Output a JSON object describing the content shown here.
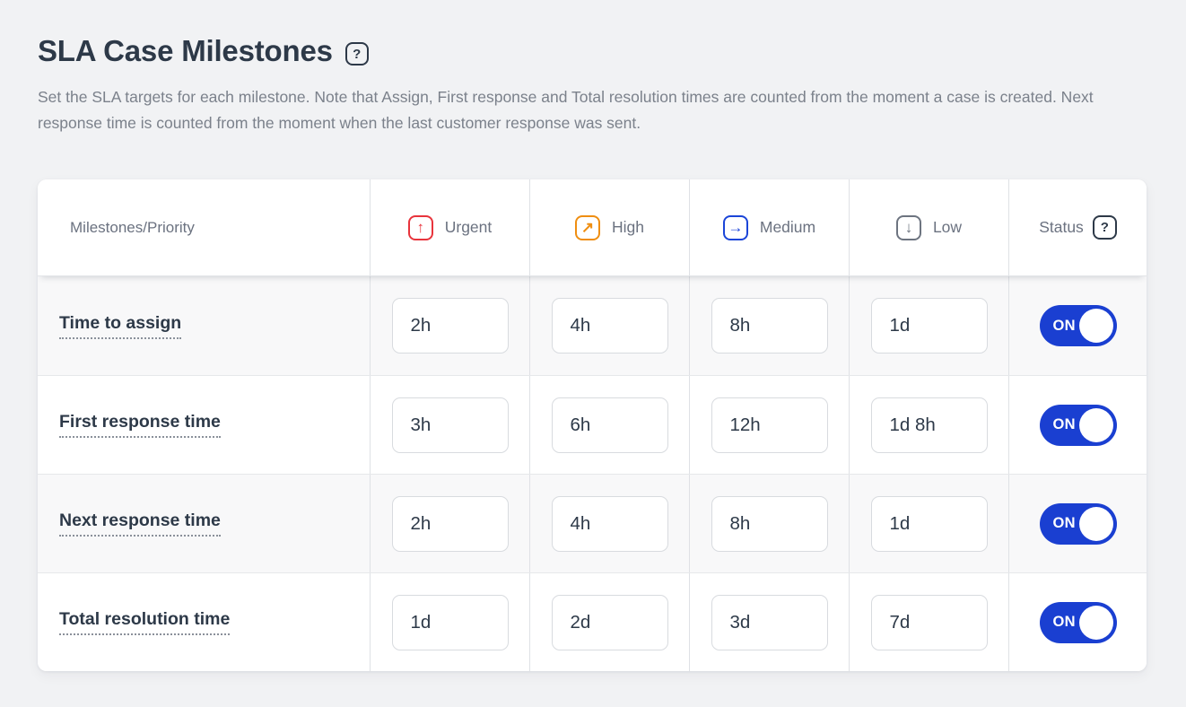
{
  "page": {
    "title": "SLA Case Milestones",
    "title_help_glyph": "?",
    "description": "Set the SLA targets for each milestone. Note that Assign, First response and Total resolution times are counted from the moment a case is created. Next response time is counted from the moment when the last customer response was sent."
  },
  "colors": {
    "urgent": "#e8343c",
    "high": "#ef8e11",
    "medium": "#1b45d8",
    "low": "#6d7480",
    "toggle_on": "#1a3fd1",
    "accent_text": "#2d3948"
  },
  "table": {
    "milestone_header": "Milestones/Priority",
    "status_header": "Status",
    "status_help_glyph": "?",
    "priorities": [
      {
        "label": "Urgent",
        "icon": "arrow-up-icon",
        "glyph": "↑",
        "color": "#e8343c"
      },
      {
        "label": "High",
        "icon": "arrow-up-right-icon",
        "glyph": "↗",
        "color": "#ef8e11"
      },
      {
        "label": "Medium",
        "icon": "arrow-right-icon",
        "glyph": "→",
        "color": "#1b45d8"
      },
      {
        "label": "Low",
        "icon": "arrow-down-icon",
        "glyph": "↓",
        "color": "#6d7480"
      }
    ],
    "rows": [
      {
        "label": "Time to assign",
        "values": [
          "2h",
          "4h",
          "8h",
          "1d"
        ],
        "status_label": "ON",
        "enabled": true
      },
      {
        "label": "First response time",
        "values": [
          "3h",
          "6h",
          "12h",
          "1d 8h"
        ],
        "status_label": "ON",
        "enabled": true
      },
      {
        "label": "Next response time",
        "values": [
          "2h",
          "4h",
          "8h",
          "1d"
        ],
        "status_label": "ON",
        "enabled": true
      },
      {
        "label": "Total resolution time",
        "values": [
          "1d",
          "2d",
          "3d",
          "7d"
        ],
        "status_label": "ON",
        "enabled": true
      }
    ]
  }
}
